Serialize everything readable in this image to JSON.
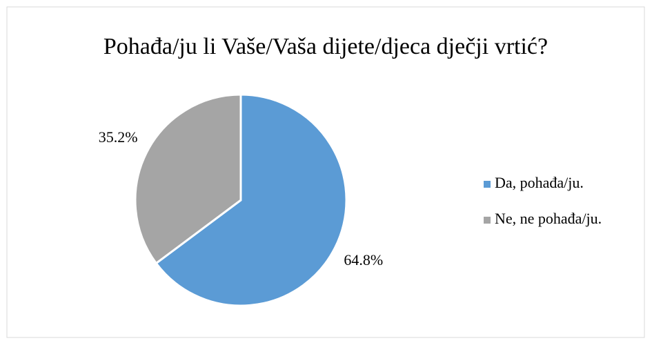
{
  "chart_data": {
    "type": "pie",
    "title": "Pohađa/ju li Vaše/Vaša dijete/djeca dječji vrtić?",
    "categories": [
      "Da, pohađa/ju.",
      "Ne, ne pohađa/ju."
    ],
    "values": [
      64.8,
      35.2
    ],
    "value_labels": [
      "64.8%",
      "35.2%"
    ],
    "colors": [
      "#5b9bd5",
      "#a5a5a5"
    ],
    "legend": "right"
  }
}
